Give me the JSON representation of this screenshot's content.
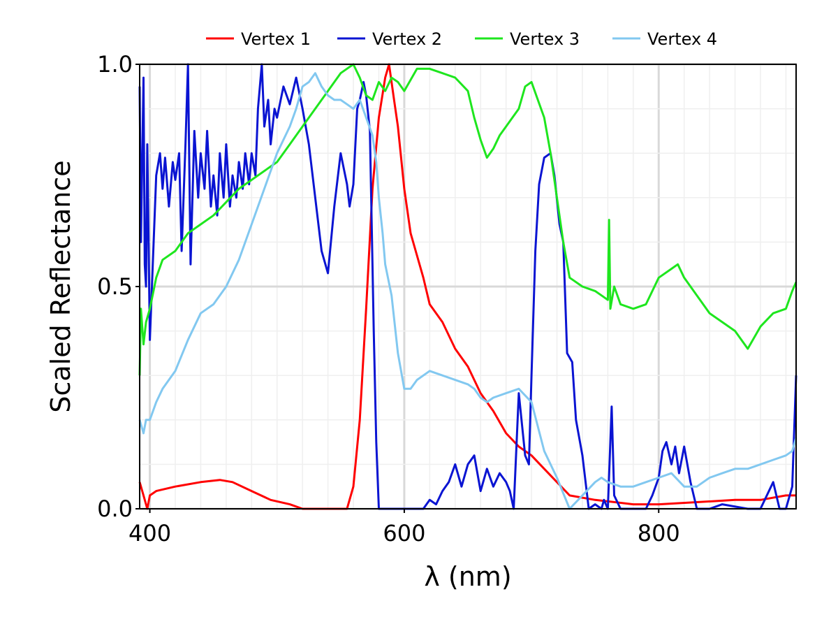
{
  "chart_data": {
    "type": "line",
    "title": "",
    "xlabel": "λ (nm)",
    "ylabel": "Scaled Reflectance",
    "xlim": [
      392,
      908
    ],
    "ylim": [
      0.0,
      1.0
    ],
    "xticks": [
      400,
      600,
      800
    ],
    "yticks": [
      0.0,
      0.5,
      1.0
    ],
    "xtick_labels": [
      "400",
      "600",
      "800"
    ],
    "ytick_labels": [
      "0.0",
      "0.5",
      "1.0"
    ],
    "grid": true,
    "legend_position": "top",
    "series": [
      {
        "name": "Vertex 1",
        "color": "#ff0000",
        "x": [
          392,
          395,
          398,
          400,
          405,
          420,
          440,
          455,
          465,
          480,
          495,
          510,
          520,
          530,
          540,
          550,
          555,
          560,
          565,
          570,
          575,
          580,
          585,
          588,
          590,
          592,
          595,
          600,
          605,
          610,
          615,
          620,
          630,
          640,
          645,
          650,
          660,
          670,
          680,
          690,
          700,
          710,
          720,
          730,
          750,
          780,
          800,
          830,
          860,
          880,
          900,
          908
        ],
        "y": [
          0.06,
          0.03,
          0.0,
          0.03,
          0.04,
          0.05,
          0.06,
          0.065,
          0.06,
          0.04,
          0.02,
          0.01,
          0.0,
          0.0,
          0.0,
          0.0,
          0.0,
          0.05,
          0.2,
          0.45,
          0.72,
          0.88,
          0.97,
          1.0,
          0.96,
          0.92,
          0.86,
          0.72,
          0.62,
          0.57,
          0.52,
          0.46,
          0.42,
          0.36,
          0.34,
          0.32,
          0.26,
          0.22,
          0.17,
          0.14,
          0.12,
          0.09,
          0.06,
          0.03,
          0.02,
          0.01,
          0.01,
          0.015,
          0.02,
          0.02,
          0.03,
          0.03
        ]
      },
      {
        "name": "Vertex 2",
        "color": "#0a14d2",
        "x": [
          392,
          393,
          395,
          396,
          397,
          398,
          400,
          403,
          405,
          408,
          410,
          412,
          415,
          418,
          420,
          423,
          425,
          428,
          430,
          432,
          435,
          438,
          440,
          443,
          445,
          448,
          450,
          453,
          455,
          458,
          460,
          463,
          465,
          468,
          470,
          473,
          475,
          478,
          480,
          483,
          485,
          488,
          490,
          493,
          495,
          498,
          500,
          505,
          510,
          515,
          520,
          525,
          530,
          535,
          540,
          545,
          550,
          555,
          557,
          560,
          563,
          565,
          568,
          570,
          573,
          576,
          578,
          580,
          582,
          585,
          590,
          600,
          615,
          620,
          625,
          630,
          635,
          640,
          645,
          650,
          655,
          660,
          665,
          670,
          675,
          680,
          683,
          686,
          690,
          695,
          698,
          700,
          703,
          706,
          710,
          715,
          718,
          722,
          725,
          728,
          732,
          735,
          740,
          745,
          750,
          755,
          757,
          760,
          763,
          765,
          770,
          780,
          790,
          795,
          800,
          803,
          806,
          810,
          813,
          816,
          820,
          825,
          830,
          840,
          850,
          870,
          880,
          890,
          895,
          900,
          905,
          908
        ],
        "y": [
          0.95,
          0.6,
          0.97,
          0.55,
          0.5,
          0.82,
          0.38,
          0.6,
          0.75,
          0.8,
          0.72,
          0.79,
          0.68,
          0.78,
          0.74,
          0.8,
          0.58,
          0.82,
          1.0,
          0.55,
          0.85,
          0.7,
          0.8,
          0.72,
          0.85,
          0.68,
          0.75,
          0.66,
          0.8,
          0.7,
          0.82,
          0.68,
          0.75,
          0.7,
          0.78,
          0.72,
          0.8,
          0.73,
          0.8,
          0.75,
          0.9,
          1.0,
          0.86,
          0.92,
          0.82,
          0.9,
          0.88,
          0.95,
          0.91,
          0.97,
          0.9,
          0.82,
          0.7,
          0.58,
          0.53,
          0.68,
          0.8,
          0.73,
          0.68,
          0.73,
          0.9,
          0.92,
          0.96,
          0.93,
          0.85,
          0.4,
          0.15,
          0.0,
          0.0,
          0.0,
          0.0,
          0.0,
          0.0,
          0.02,
          0.01,
          0.04,
          0.06,
          0.1,
          0.05,
          0.1,
          0.12,
          0.04,
          0.09,
          0.05,
          0.08,
          0.06,
          0.04,
          0.0,
          0.26,
          0.12,
          0.1,
          0.3,
          0.58,
          0.73,
          0.79,
          0.8,
          0.75,
          0.64,
          0.6,
          0.35,
          0.33,
          0.2,
          0.12,
          0.0,
          0.01,
          0.0,
          0.02,
          0.0,
          0.23,
          0.03,
          0.0,
          0.0,
          0.0,
          0.03,
          0.07,
          0.13,
          0.15,
          0.1,
          0.14,
          0.08,
          0.14,
          0.06,
          0.0,
          0.0,
          0.01,
          0.0,
          0.0,
          0.06,
          0.0,
          0.0,
          0.05,
          0.3
        ]
      },
      {
        "name": "Vertex 3",
        "color": "#1ee61e",
        "x": [
          392,
          393,
          395,
          397,
          400,
          405,
          410,
          420,
          430,
          440,
          450,
          460,
          470,
          480,
          490,
          500,
          510,
          520,
          530,
          540,
          550,
          560,
          565,
          570,
          575,
          580,
          585,
          590,
          595,
          600,
          610,
          620,
          630,
          640,
          650,
          655,
          660,
          665,
          670,
          675,
          680,
          685,
          690,
          695,
          700,
          705,
          710,
          715,
          720,
          725,
          730,
          740,
          750,
          755,
          760,
          761,
          762,
          765,
          770,
          780,
          790,
          800,
          810,
          815,
          820,
          830,
          840,
          850,
          860,
          870,
          880,
          890,
          900,
          905,
          908
        ],
        "y": [
          0.3,
          0.45,
          0.37,
          0.42,
          0.45,
          0.52,
          0.56,
          0.58,
          0.62,
          0.64,
          0.66,
          0.69,
          0.72,
          0.74,
          0.76,
          0.78,
          0.82,
          0.86,
          0.9,
          0.94,
          0.98,
          1.0,
          0.97,
          0.93,
          0.92,
          0.96,
          0.94,
          0.97,
          0.96,
          0.94,
          0.99,
          0.99,
          0.98,
          0.97,
          0.94,
          0.88,
          0.83,
          0.79,
          0.81,
          0.84,
          0.86,
          0.88,
          0.9,
          0.95,
          0.96,
          0.92,
          0.88,
          0.8,
          0.7,
          0.6,
          0.52,
          0.5,
          0.49,
          0.48,
          0.47,
          0.65,
          0.45,
          0.5,
          0.46,
          0.45,
          0.46,
          0.52,
          0.54,
          0.55,
          0.52,
          0.48,
          0.44,
          0.42,
          0.4,
          0.36,
          0.41,
          0.44,
          0.45,
          0.49,
          0.51
        ]
      },
      {
        "name": "Vertex 4",
        "color": "#82c8f0",
        "x": [
          392,
          395,
          397,
          400,
          405,
          410,
          420,
          430,
          440,
          450,
          460,
          470,
          480,
          490,
          500,
          510,
          515,
          520,
          525,
          530,
          535,
          540,
          545,
          550,
          555,
          560,
          565,
          570,
          575,
          578,
          580,
          583,
          585,
          590,
          595,
          600,
          605,
          610,
          620,
          630,
          640,
          650,
          655,
          660,
          665,
          670,
          680,
          690,
          700,
          710,
          720,
          730,
          740,
          750,
          755,
          760,
          770,
          780,
          790,
          800,
          810,
          820,
          830,
          840,
          850,
          860,
          870,
          880,
          890,
          900,
          905,
          908
        ],
        "y": [
          0.2,
          0.17,
          0.2,
          0.2,
          0.24,
          0.27,
          0.31,
          0.38,
          0.44,
          0.46,
          0.5,
          0.56,
          0.64,
          0.72,
          0.8,
          0.86,
          0.9,
          0.95,
          0.96,
          0.98,
          0.95,
          0.93,
          0.92,
          0.92,
          0.91,
          0.9,
          0.92,
          0.88,
          0.84,
          0.78,
          0.7,
          0.62,
          0.55,
          0.48,
          0.35,
          0.27,
          0.27,
          0.29,
          0.31,
          0.3,
          0.29,
          0.28,
          0.27,
          0.25,
          0.24,
          0.25,
          0.26,
          0.27,
          0.24,
          0.13,
          0.07,
          0.0,
          0.03,
          0.06,
          0.07,
          0.06,
          0.05,
          0.05,
          0.06,
          0.07,
          0.08,
          0.05,
          0.05,
          0.07,
          0.08,
          0.09,
          0.09,
          0.1,
          0.11,
          0.12,
          0.13,
          0.16
        ]
      }
    ]
  }
}
